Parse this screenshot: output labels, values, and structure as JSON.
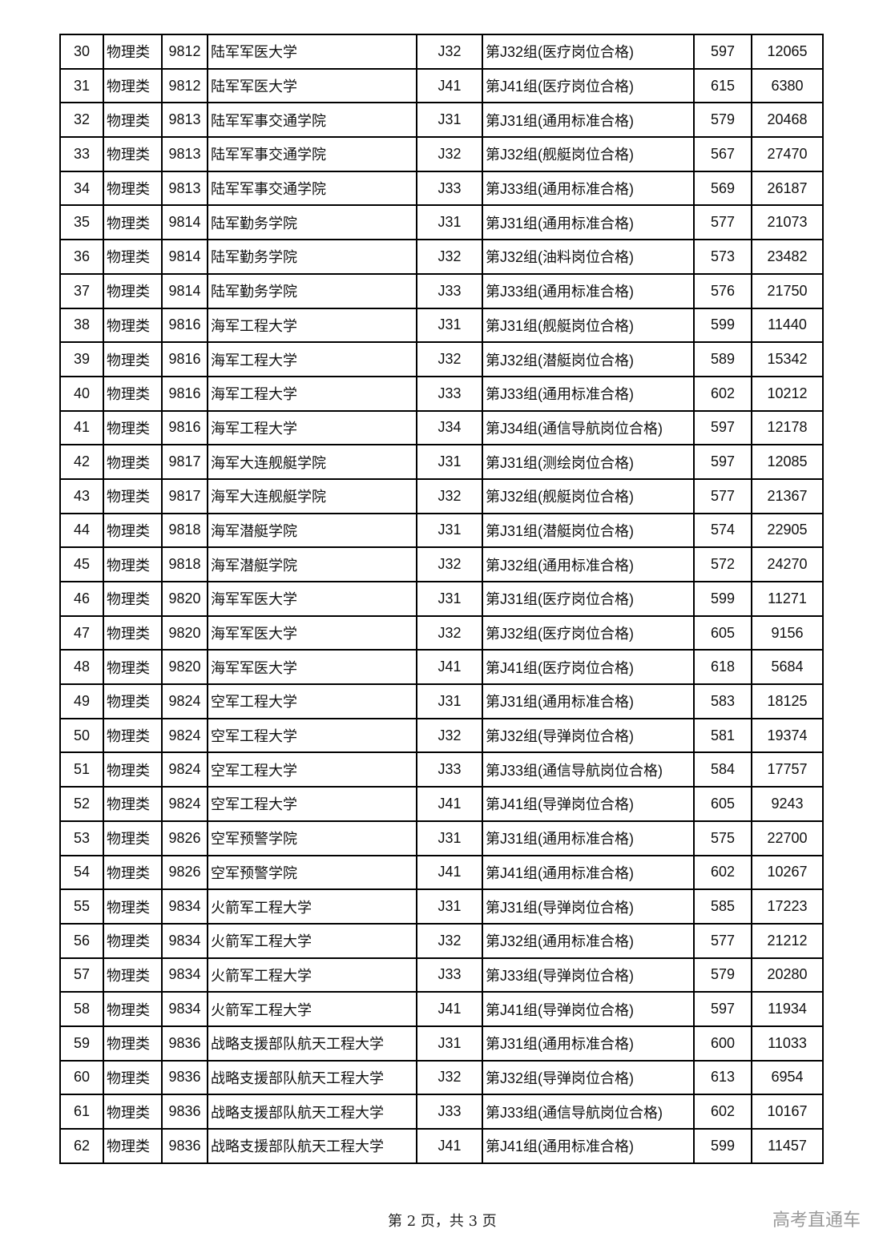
{
  "table": {
    "rows": [
      [
        "30",
        "物理类",
        "9812",
        "陆军军医大学",
        "J32",
        "第J32组(医疗岗位合格)",
        "597",
        "12065"
      ],
      [
        "31",
        "物理类",
        "9812",
        "陆军军医大学",
        "J41",
        "第J41组(医疗岗位合格)",
        "615",
        "6380"
      ],
      [
        "32",
        "物理类",
        "9813",
        "陆军军事交通学院",
        "J31",
        "第J31组(通用标准合格)",
        "579",
        "20468"
      ],
      [
        "33",
        "物理类",
        "9813",
        "陆军军事交通学院",
        "J32",
        "第J32组(舰艇岗位合格)",
        "567",
        "27470"
      ],
      [
        "34",
        "物理类",
        "9813",
        "陆军军事交通学院",
        "J33",
        "第J33组(通用标准合格)",
        "569",
        "26187"
      ],
      [
        "35",
        "物理类",
        "9814",
        "陆军勤务学院",
        "J31",
        "第J31组(通用标准合格)",
        "577",
        "21073"
      ],
      [
        "36",
        "物理类",
        "9814",
        "陆军勤务学院",
        "J32",
        "第J32组(油料岗位合格)",
        "573",
        "23482"
      ],
      [
        "37",
        "物理类",
        "9814",
        "陆军勤务学院",
        "J33",
        "第J33组(通用标准合格)",
        "576",
        "21750"
      ],
      [
        "38",
        "物理类",
        "9816",
        "海军工程大学",
        "J31",
        "第J31组(舰艇岗位合格)",
        "599",
        "11440"
      ],
      [
        "39",
        "物理类",
        "9816",
        "海军工程大学",
        "J32",
        "第J32组(潜艇岗位合格)",
        "589",
        "15342"
      ],
      [
        "40",
        "物理类",
        "9816",
        "海军工程大学",
        "J33",
        "第J33组(通用标准合格)",
        "602",
        "10212"
      ],
      [
        "41",
        "物理类",
        "9816",
        "海军工程大学",
        "J34",
        "第J34组(通信导航岗位合格)",
        "597",
        "12178"
      ],
      [
        "42",
        "物理类",
        "9817",
        "海军大连舰艇学院",
        "J31",
        "第J31组(测绘岗位合格)",
        "597",
        "12085"
      ],
      [
        "43",
        "物理类",
        "9817",
        "海军大连舰艇学院",
        "J32",
        "第J32组(舰艇岗位合格)",
        "577",
        "21367"
      ],
      [
        "44",
        "物理类",
        "9818",
        "海军潜艇学院",
        "J31",
        "第J31组(潜艇岗位合格)",
        "574",
        "22905"
      ],
      [
        "45",
        "物理类",
        "9818",
        "海军潜艇学院",
        "J32",
        "第J32组(通用标准合格)",
        "572",
        "24270"
      ],
      [
        "46",
        "物理类",
        "9820",
        "海军军医大学",
        "J31",
        "第J31组(医疗岗位合格)",
        "599",
        "11271"
      ],
      [
        "47",
        "物理类",
        "9820",
        "海军军医大学",
        "J32",
        "第J32组(医疗岗位合格)",
        "605",
        "9156"
      ],
      [
        "48",
        "物理类",
        "9820",
        "海军军医大学",
        "J41",
        "第J41组(医疗岗位合格)",
        "618",
        "5684"
      ],
      [
        "49",
        "物理类",
        "9824",
        "空军工程大学",
        "J31",
        "第J31组(通用标准合格)",
        "583",
        "18125"
      ],
      [
        "50",
        "物理类",
        "9824",
        "空军工程大学",
        "J32",
        "第J32组(导弹岗位合格)",
        "581",
        "19374"
      ],
      [
        "51",
        "物理类",
        "9824",
        "空军工程大学",
        "J33",
        "第J33组(通信导航岗位合格)",
        "584",
        "17757"
      ],
      [
        "52",
        "物理类",
        "9824",
        "空军工程大学",
        "J41",
        "第J41组(导弹岗位合格)",
        "605",
        "9243"
      ],
      [
        "53",
        "物理类",
        "9826",
        "空军预警学院",
        "J31",
        "第J31组(通用标准合格)",
        "575",
        "22700"
      ],
      [
        "54",
        "物理类",
        "9826",
        "空军预警学院",
        "J41",
        "第J41组(通用标准合格)",
        "602",
        "10267"
      ],
      [
        "55",
        "物理类",
        "9834",
        "火箭军工程大学",
        "J31",
        "第J31组(导弹岗位合格)",
        "585",
        "17223"
      ],
      [
        "56",
        "物理类",
        "9834",
        "火箭军工程大学",
        "J32",
        "第J32组(通用标准合格)",
        "577",
        "21212"
      ],
      [
        "57",
        "物理类",
        "9834",
        "火箭军工程大学",
        "J33",
        "第J33组(导弹岗位合格)",
        "579",
        "20280"
      ],
      [
        "58",
        "物理类",
        "9834",
        "火箭军工程大学",
        "J41",
        "第J41组(导弹岗位合格)",
        "597",
        "11934"
      ],
      [
        "59",
        "物理类",
        "9836",
        "战略支援部队航天工程大学",
        "J31",
        "第J31组(通用标准合格)",
        "600",
        "11033"
      ],
      [
        "60",
        "物理类",
        "9836",
        "战略支援部队航天工程大学",
        "J32",
        "第J32组(导弹岗位合格)",
        "613",
        "6954"
      ],
      [
        "61",
        "物理类",
        "9836",
        "战略支援部队航天工程大学",
        "J33",
        "第J33组(通信导航岗位合格)",
        "602",
        "10167"
      ],
      [
        "62",
        "物理类",
        "9836",
        "战略支援部队航天工程大学",
        "J41",
        "第J41组(通用标准合格)",
        "599",
        "11457"
      ]
    ]
  },
  "footer": {
    "page_label": "第 2 页，共 3 页"
  },
  "watermark": "高考直通车"
}
